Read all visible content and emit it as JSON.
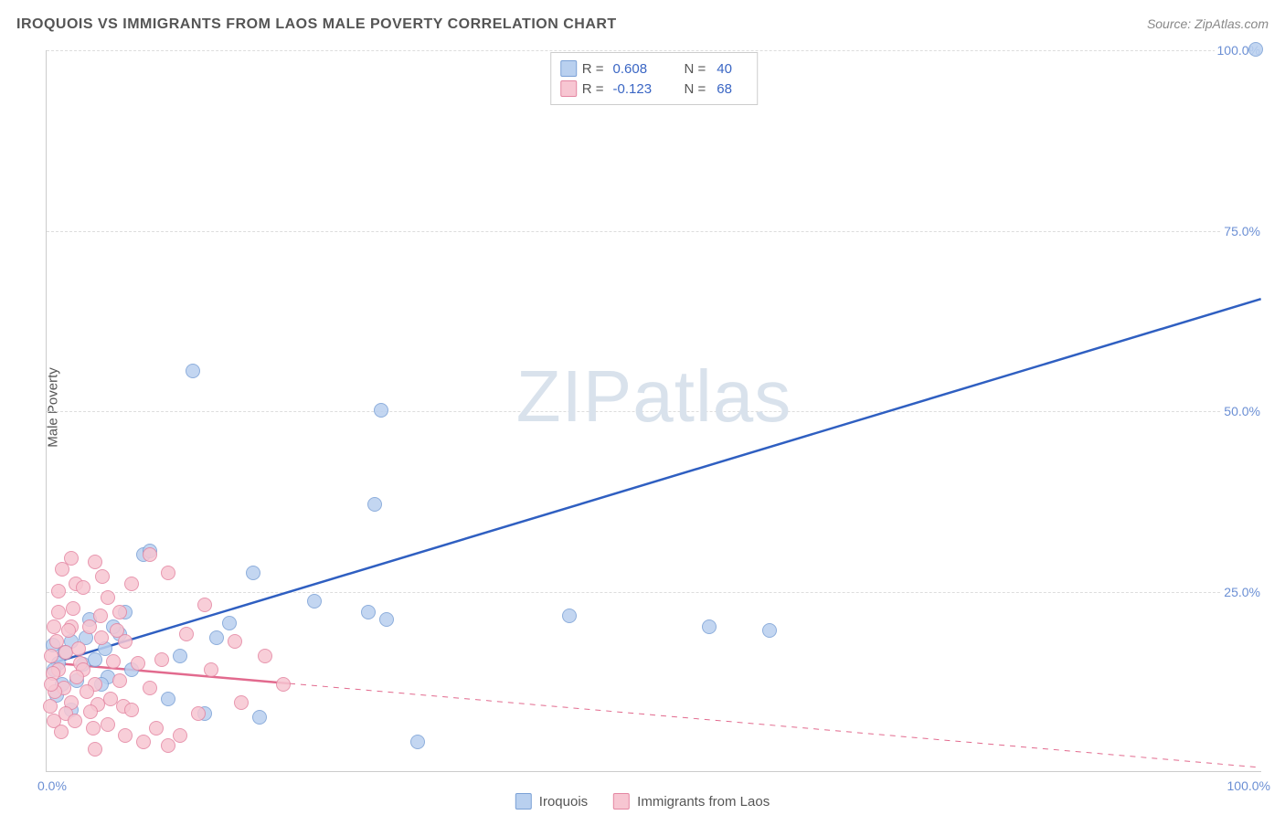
{
  "title": "IROQUOIS VS IMMIGRANTS FROM LAOS MALE POVERTY CORRELATION CHART",
  "source": "Source: ZipAtlas.com",
  "ylabel": "Male Poverty",
  "watermark": {
    "zip": "ZIP",
    "atlas": "atlas"
  },
  "chart": {
    "type": "scatter",
    "background_color": "#ffffff",
    "grid_color": "#dddddd",
    "axis_color": "#cccccc",
    "marker_size": 16,
    "line_width_solid": 2.5,
    "xlim": [
      0,
      100
    ],
    "ylim": [
      0,
      100
    ],
    "xticks": [
      {
        "v": 0,
        "label": "0.0%"
      },
      {
        "v": 100,
        "label": "100.0%"
      }
    ],
    "yticks": [
      {
        "v": 25,
        "label": "25.0%"
      },
      {
        "v": 50,
        "label": "50.0%"
      },
      {
        "v": 75,
        "label": "75.0%"
      },
      {
        "v": 100,
        "label": "100.0%"
      }
    ],
    "series": [
      {
        "name": "Iroquois",
        "fill": "#b9d0ef",
        "stroke": "#7ba1d6",
        "line_color": "#2f5fc1",
        "R": "0.608",
        "N": "40",
        "regression": {
          "x1": 0.5,
          "y1": 15.0,
          "x2": 100,
          "y2": 65.5,
          "solid_until_x": 100
        },
        "points": [
          [
            99.5,
            100.0
          ],
          [
            12.0,
            55.5
          ],
          [
            27.5,
            50.0
          ],
          [
            27.0,
            37.0
          ],
          [
            43.0,
            21.5
          ],
          [
            54.5,
            20.0
          ],
          [
            59.5,
            19.5
          ],
          [
            26.5,
            22.0
          ],
          [
            28.0,
            21.0
          ],
          [
            17.0,
            27.5
          ],
          [
            8.0,
            30.0
          ],
          [
            8.5,
            30.5
          ],
          [
            22.0,
            23.5
          ],
          [
            15.0,
            20.5
          ],
          [
            14.0,
            18.5
          ],
          [
            11.0,
            16.0
          ],
          [
            10.0,
            10.0
          ],
          [
            13.0,
            8.0
          ],
          [
            30.5,
            4.0
          ],
          [
            17.5,
            7.5
          ],
          [
            6.5,
            22.0
          ],
          [
            6.0,
            19.0
          ],
          [
            4.8,
            17.0
          ],
          [
            3.0,
            14.8
          ],
          [
            2.5,
            12.5
          ],
          [
            2.0,
            18.0
          ],
          [
            1.0,
            15.0
          ],
          [
            1.5,
            16.5
          ],
          [
            4.0,
            15.5
          ],
          [
            3.5,
            21.0
          ],
          [
            0.8,
            10.5
          ],
          [
            0.5,
            17.5
          ],
          [
            5.0,
            13.0
          ],
          [
            5.5,
            20.0
          ],
          [
            7.0,
            14.0
          ],
          [
            2.0,
            8.5
          ],
          [
            1.3,
            12.0
          ],
          [
            4.5,
            12.0
          ],
          [
            3.2,
            18.5
          ],
          [
            0.6,
            14.0
          ]
        ]
      },
      {
        "name": "Immigrants from Laos",
        "fill": "#f7c6d2",
        "stroke": "#e486a2",
        "line_color": "#e26a8e",
        "R": "-0.123",
        "N": "68",
        "regression": {
          "x1": 0.5,
          "y1": 15.0,
          "x2": 100,
          "y2": 0.5,
          "solid_until_x": 20
        },
        "points": [
          [
            2.0,
            29.5
          ],
          [
            4.0,
            29.0
          ],
          [
            8.5,
            30.0
          ],
          [
            10.0,
            27.5
          ],
          [
            1.3,
            28.0
          ],
          [
            2.4,
            26.0
          ],
          [
            5.0,
            24.0
          ],
          [
            6.0,
            22.0
          ],
          [
            1.0,
            22.0
          ],
          [
            3.5,
            20.0
          ],
          [
            2.0,
            20.0
          ],
          [
            0.8,
            18.0
          ],
          [
            4.5,
            18.5
          ],
          [
            6.5,
            18.0
          ],
          [
            1.6,
            16.5
          ],
          [
            0.4,
            16.0
          ],
          [
            2.8,
            15.0
          ],
          [
            5.5,
            15.2
          ],
          [
            7.5,
            15.0
          ],
          [
            1.0,
            14.0
          ],
          [
            3.0,
            14.0
          ],
          [
            0.5,
            13.5
          ],
          [
            2.5,
            13.0
          ],
          [
            4.0,
            12.0
          ],
          [
            6.0,
            12.5
          ],
          [
            1.4,
            11.5
          ],
          [
            0.7,
            11.0
          ],
          [
            3.3,
            11.0
          ],
          [
            5.3,
            10.0
          ],
          [
            8.5,
            11.5
          ],
          [
            2.0,
            9.5
          ],
          [
            0.3,
            9.0
          ],
          [
            4.2,
            9.2
          ],
          [
            6.3,
            9.0
          ],
          [
            1.6,
            8.0
          ],
          [
            3.6,
            8.2
          ],
          [
            7.0,
            8.5
          ],
          [
            0.6,
            7.0
          ],
          [
            2.3,
            7.0
          ],
          [
            5.0,
            6.5
          ],
          [
            12.5,
            8.0
          ],
          [
            9.0,
            6.0
          ],
          [
            11.0,
            5.0
          ],
          [
            8.0,
            4.0
          ],
          [
            10.0,
            3.5
          ],
          [
            6.5,
            5.0
          ],
          [
            4.0,
            3.0
          ],
          [
            19.5,
            12.0
          ],
          [
            15.5,
            18.0
          ],
          [
            13.0,
            23.0
          ],
          [
            11.5,
            19.0
          ],
          [
            9.5,
            15.5
          ],
          [
            13.5,
            14.0
          ],
          [
            16.0,
            9.5
          ],
          [
            18.0,
            16.0
          ],
          [
            3.0,
            25.5
          ],
          [
            4.6,
            27.0
          ],
          [
            1.0,
            25.0
          ],
          [
            0.6,
            20.0
          ],
          [
            2.2,
            22.5
          ],
          [
            7.0,
            26.0
          ],
          [
            5.8,
            19.5
          ],
          [
            2.6,
            17.0
          ],
          [
            1.8,
            19.5
          ],
          [
            4.4,
            21.5
          ],
          [
            3.8,
            6.0
          ],
          [
            1.2,
            5.5
          ],
          [
            0.4,
            12.0
          ]
        ]
      }
    ]
  },
  "bottom_legend": [
    {
      "label": "Iroquois",
      "series": 0
    },
    {
      "label": "Immigrants from Laos",
      "series": 1
    }
  ]
}
